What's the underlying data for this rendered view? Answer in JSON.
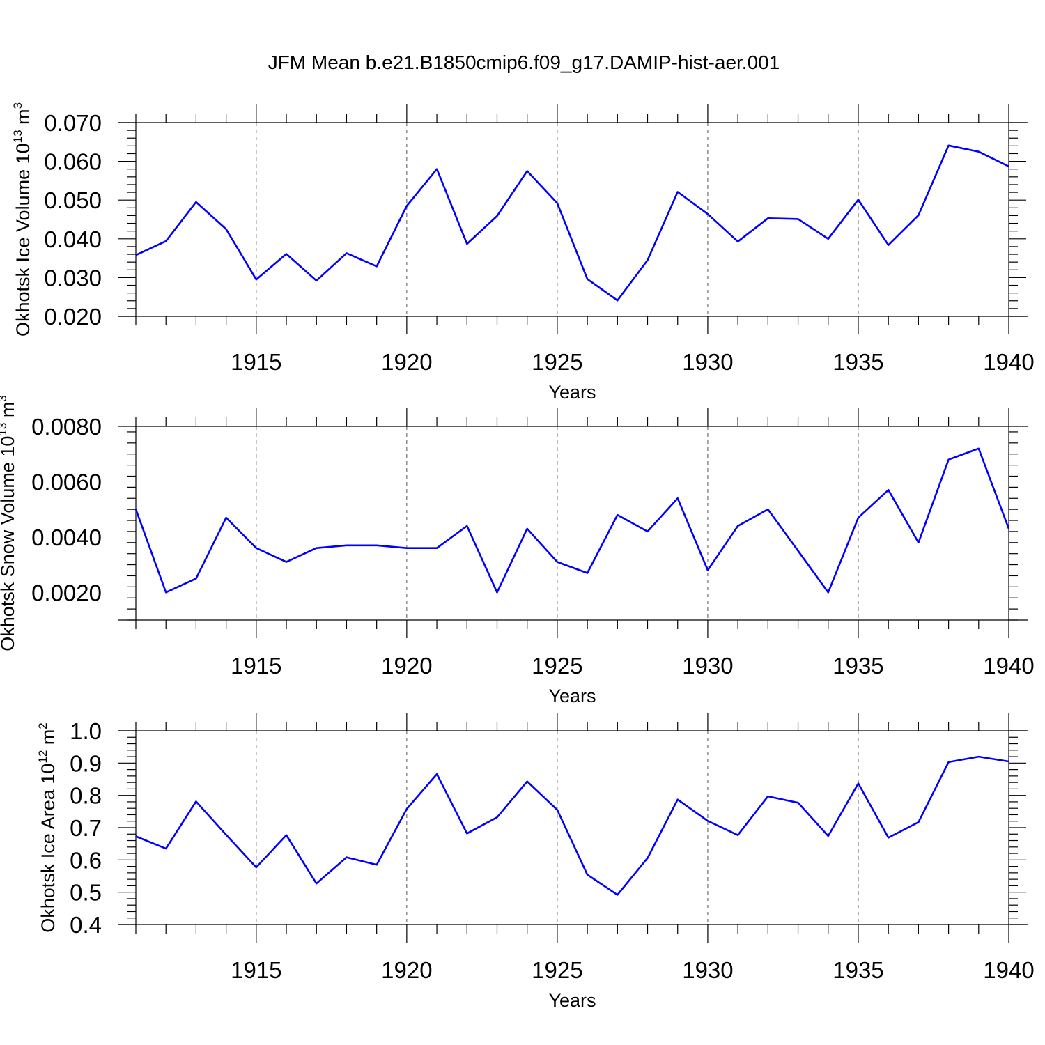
{
  "title": "JFM Mean b.e21.B1850cmip6.f09_g17.DAMIP-hist-aer.001",
  "colors": {
    "line": "#0000ff",
    "axis": "#000000",
    "grid": "#555555"
  },
  "chart_data": [
    {
      "type": "line",
      "xlabel": "Years",
      "ylabel": "Okhotsk Ice Volume 10",
      "ylabel_sup": "13",
      "ylabel_unit": " m",
      "ylabel_unit_sup": "3",
      "xlim": [
        1911,
        1940
      ],
      "ylim": [
        0.02,
        0.07
      ],
      "xticks": [
        1915,
        1920,
        1925,
        1930,
        1935,
        1940
      ],
      "yticks": [
        0.02,
        0.03,
        0.04,
        0.05,
        0.06,
        0.07
      ],
      "ytick_labels": [
        "0.020",
        "0.030",
        "0.040",
        "0.050",
        "0.060",
        "0.070"
      ],
      "x": [
        1911,
        1912,
        1913,
        1914,
        1915,
        1916,
        1917,
        1918,
        1919,
        1920,
        1921,
        1922,
        1923,
        1924,
        1925,
        1926,
        1927,
        1928,
        1929,
        1930,
        1931,
        1932,
        1933,
        1934,
        1935,
        1936,
        1937,
        1938,
        1939,
        1940
      ],
      "values": [
        0.0358,
        0.0394,
        0.0495,
        0.0425,
        0.0295,
        0.0361,
        0.0292,
        0.0363,
        0.0329,
        0.0485,
        0.058,
        0.0387,
        0.0459,
        0.0575,
        0.0492,
        0.0296,
        0.0241,
        0.0345,
        0.0521,
        0.0464,
        0.0393,
        0.0453,
        0.0451,
        0.04,
        0.0501,
        0.0384,
        0.0461,
        0.0641,
        0.0625,
        0.0587
      ]
    },
    {
      "type": "line",
      "xlabel": "Years",
      "ylabel": "Okhotsk Snow Volume 10",
      "ylabel_sup": "13",
      "ylabel_unit": " m",
      "ylabel_unit_sup": "3",
      "xlim": [
        1911,
        1940
      ],
      "ylim": [
        0.001,
        0.008
      ],
      "xticks": [
        1915,
        1920,
        1925,
        1930,
        1935,
        1940
      ],
      "yticks": [
        0.002,
        0.004,
        0.006,
        0.008
      ],
      "ytick_labels": [
        "0.0020",
        "0.0040",
        "0.0060",
        "0.0080"
      ],
      "x": [
        1911,
        1912,
        1913,
        1914,
        1915,
        1916,
        1917,
        1918,
        1919,
        1920,
        1921,
        1922,
        1923,
        1924,
        1925,
        1926,
        1927,
        1928,
        1929,
        1930,
        1931,
        1932,
        1933,
        1934,
        1935,
        1936,
        1937,
        1938,
        1939,
        1940
      ],
      "values": [
        0.005,
        0.002,
        0.0025,
        0.0047,
        0.0036,
        0.0031,
        0.0036,
        0.0037,
        0.0037,
        0.0036,
        0.0036,
        0.0044,
        0.002,
        0.0043,
        0.0031,
        0.0027,
        0.0048,
        0.0042,
        0.0054,
        0.0028,
        0.0044,
        0.005,
        0.0035,
        0.002,
        0.0047,
        0.0057,
        0.0038,
        0.0068,
        0.0072,
        0.0043
      ]
    },
    {
      "type": "line",
      "xlabel": "Years",
      "ylabel": "Okhotsk Ice Area 10",
      "ylabel_sup": "12",
      "ylabel_unit": " m",
      "ylabel_unit_sup": "2",
      "xlim": [
        1911,
        1940
      ],
      "ylim": [
        0.4,
        1.0
      ],
      "xticks": [
        1915,
        1920,
        1925,
        1930,
        1935,
        1940
      ],
      "yticks": [
        0.4,
        0.5,
        0.6,
        0.7,
        0.8,
        0.9,
        1.0
      ],
      "ytick_labels": [
        "0.4",
        "0.5",
        "0.6",
        "0.7",
        "0.8",
        "0.9",
        "1.0"
      ],
      "x": [
        1911,
        1912,
        1913,
        1914,
        1915,
        1916,
        1917,
        1918,
        1919,
        1920,
        1921,
        1922,
        1923,
        1924,
        1925,
        1926,
        1927,
        1928,
        1929,
        1930,
        1931,
        1932,
        1933,
        1934,
        1935,
        1936,
        1937,
        1938,
        1939,
        1940
      ],
      "values": [
        0.673,
        0.635,
        0.781,
        0.678,
        0.577,
        0.677,
        0.527,
        0.608,
        0.585,
        0.758,
        0.866,
        0.682,
        0.732,
        0.843,
        0.755,
        0.554,
        0.492,
        0.606,
        0.787,
        0.721,
        0.677,
        0.797,
        0.777,
        0.674,
        0.837,
        0.669,
        0.717,
        0.903,
        0.92,
        0.905
      ]
    }
  ]
}
